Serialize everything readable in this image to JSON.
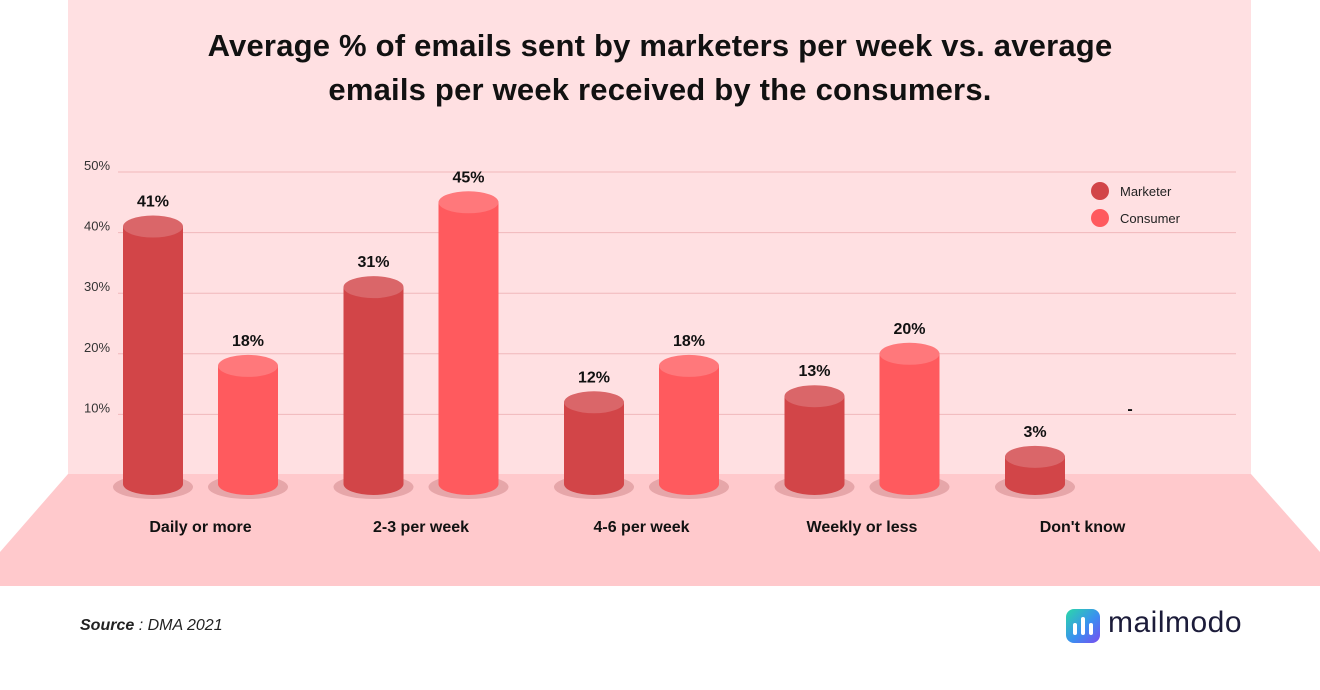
{
  "title_lines": [
    "Average % of emails sent by marketers per week vs. average",
    "emails per week received by the consumers."
  ],
  "source": {
    "label": "Source",
    "separator": " : ",
    "value": "DMA 2021"
  },
  "brand": {
    "name": "mailmodo"
  },
  "colors": {
    "background_panel": "#ffe0e2",
    "floor": "#ffc9cc",
    "marketer": "#d24548",
    "consumer": "#ff5a5e",
    "grid": "#f0b8bb"
  },
  "chart_data": {
    "type": "bar",
    "title": "Average % of emails sent by marketers per week vs. average emails per week received by the consumers.",
    "categories": [
      "Daily or more",
      "2-3 per week",
      "4-6 per week",
      "Weekly or less",
      "Don't know"
    ],
    "series": [
      {
        "name": "Marketer",
        "values": [
          41,
          31,
          12,
          13,
          3
        ],
        "labels": [
          "41%",
          "31%",
          "12%",
          "13%",
          "3%"
        ],
        "color": "#d24548"
      },
      {
        "name": "Consumer",
        "values": [
          18,
          45,
          18,
          20,
          null
        ],
        "labels": [
          "18%",
          "45%",
          "18%",
          "20%",
          "-"
        ],
        "color": "#ff5a5e"
      }
    ],
    "y_ticks": [
      {
        "value": 10,
        "label": "10%"
      },
      {
        "value": 20,
        "label": "20%"
      },
      {
        "value": 30,
        "label": "30%"
      },
      {
        "value": 40,
        "label": "40%"
      },
      {
        "value": 50,
        "label": "50%"
      }
    ],
    "ylim": [
      0,
      50
    ],
    "legend_position": "top-right",
    "grid": true
  }
}
